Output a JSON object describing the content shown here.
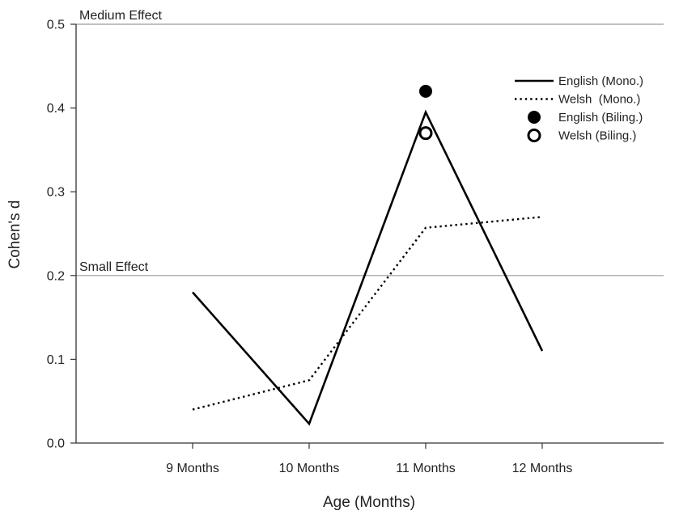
{
  "chart_data": {
    "type": "line",
    "title": "",
    "xlabel": "Age (Months)",
    "ylabel": "Cohen's d",
    "categories": [
      "9 Months",
      "10 Months",
      "11 Months",
      "12 Months"
    ],
    "ylim": [
      0.0,
      0.5
    ],
    "yticks": [
      "0.0",
      "0.1",
      "0.2",
      "0.3",
      "0.4",
      "0.5"
    ],
    "grid": false,
    "legend_position": "top-right",
    "reference_lines": [
      {
        "label": "Medium Effect",
        "value": 0.5
      },
      {
        "label": "Small Effect",
        "value": 0.2
      }
    ],
    "series": [
      {
        "name": "English (Mono.)",
        "style": "solid-line",
        "values": [
          0.18,
          0.023,
          0.395,
          0.11
        ]
      },
      {
        "name": "Welsh  (Mono.)",
        "style": "dotted-line",
        "values": [
          0.04,
          0.075,
          0.257,
          0.27
        ]
      },
      {
        "name": "English (Biling.)",
        "style": "filled-circle",
        "values": [
          null,
          null,
          0.42,
          null
        ]
      },
      {
        "name": "Welsh (Biling.)",
        "style": "open-circle",
        "values": [
          null,
          null,
          0.37,
          null
        ]
      }
    ],
    "colors": {
      "line": "#000000",
      "reference": "#9a9a9a",
      "axis": "#333333"
    }
  }
}
